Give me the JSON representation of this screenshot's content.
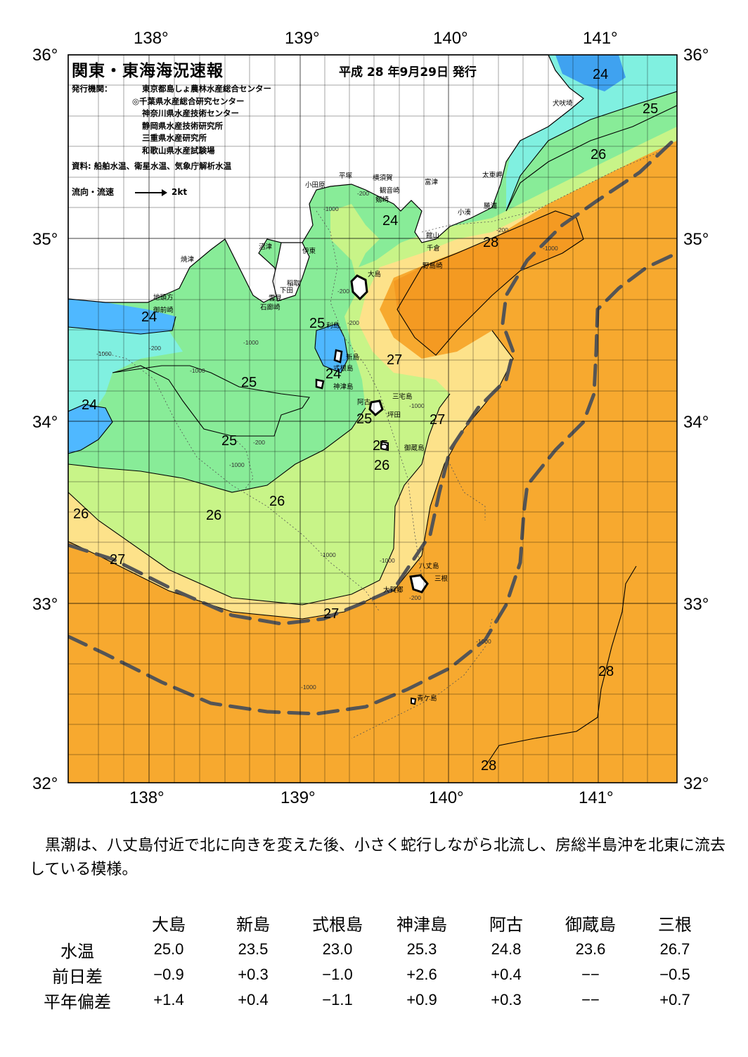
{
  "header": {
    "title": "関東・東海海況速報",
    "issue_date": "平成 28 年9月29日 発行",
    "issuer_label": "発行機関：",
    "issuers": [
      "東京都島しょ農林水産総合センター",
      "◎千葉県水産総合研究センター",
      "神奈川県水産技術センター",
      "静岡県水産技術研究所",
      "三重県水産研究所",
      "和歌山県水産試験場"
    ],
    "source": "資料: 船舶水温、衛星水温、気象庁解析水温",
    "flow_legend_label": "流向・流速",
    "flow_legend_value": "2kt"
  },
  "axes": {
    "lon_labels": [
      "138°",
      "139°",
      "140°",
      "141°"
    ],
    "lat_labels": [
      "36°",
      "35°",
      "34°",
      "33°",
      "32°"
    ]
  },
  "isotherm_labels": [
    "24",
    "24",
    "24",
    "24",
    "24",
    "25",
    "25",
    "25",
    "25",
    "25",
    "25",
    "26",
    "26",
    "26",
    "26",
    "26",
    "27",
    "27",
    "27",
    "27",
    "28",
    "28",
    "28"
  ],
  "place_names": [
    "犬吠埼",
    "太東岬",
    "勝浦",
    "小湊",
    "富津",
    "横須賀",
    "観音崎",
    "剱崎",
    "平塚",
    "小田原",
    "館山",
    "千倉",
    "野島崎",
    "沼津",
    "伊東",
    "焼津",
    "稲取",
    "下田",
    "雲見",
    "石廊崎",
    "地頭方",
    "御前崎",
    "大島",
    "利島",
    "新島",
    "式根島",
    "神津島",
    "三宅島",
    "坪田",
    "阿古",
    "御蔵島",
    "八丈島",
    "三根",
    "大賀郷",
    "青ケ島"
  ],
  "depth_labels": [
    "-200",
    "-200",
    "-200",
    "-200",
    "-200",
    "-200",
    "-200",
    "-1000",
    "-1000",
    "-1000",
    "-1000",
    "-1000",
    "-1000",
    "-1000",
    "-1000",
    "-1000",
    "-1000",
    "-1000"
  ],
  "colors": {
    "t24": "#4fb8ff",
    "t24_25": "#80f0e0",
    "t25": "#88ec98",
    "t26": "#c8f488",
    "t27": "#fde28a",
    "t28": "#f7a92f",
    "t28_plus": "#f49a22",
    "kuroshio": "#555555"
  },
  "summary": "黒潮は、八丈島付近で北に向きを変えた後、小さく蛇行しながら北流し、房総半島沖を北東に流去している模様。",
  "table": {
    "stations": [
      "大島",
      "新島",
      "式根島",
      "神津島",
      "阿古",
      "御蔵島",
      "三根"
    ],
    "rows": [
      {
        "label": "水温",
        "values": [
          "25.0",
          "23.5",
          "23.0",
          "25.3",
          "24.8",
          "23.6",
          "26.7"
        ]
      },
      {
        "label": "前日差",
        "values": [
          "−0.9",
          "+0.3",
          "−1.0",
          "+2.6",
          "+0.4",
          "−−",
          "−0.5"
        ]
      },
      {
        "label": "平年偏差",
        "values": [
          "+1.4",
          "+0.4",
          "−1.1",
          "+0.9",
          "+0.3",
          "−−",
          "+0.7"
        ]
      }
    ]
  }
}
